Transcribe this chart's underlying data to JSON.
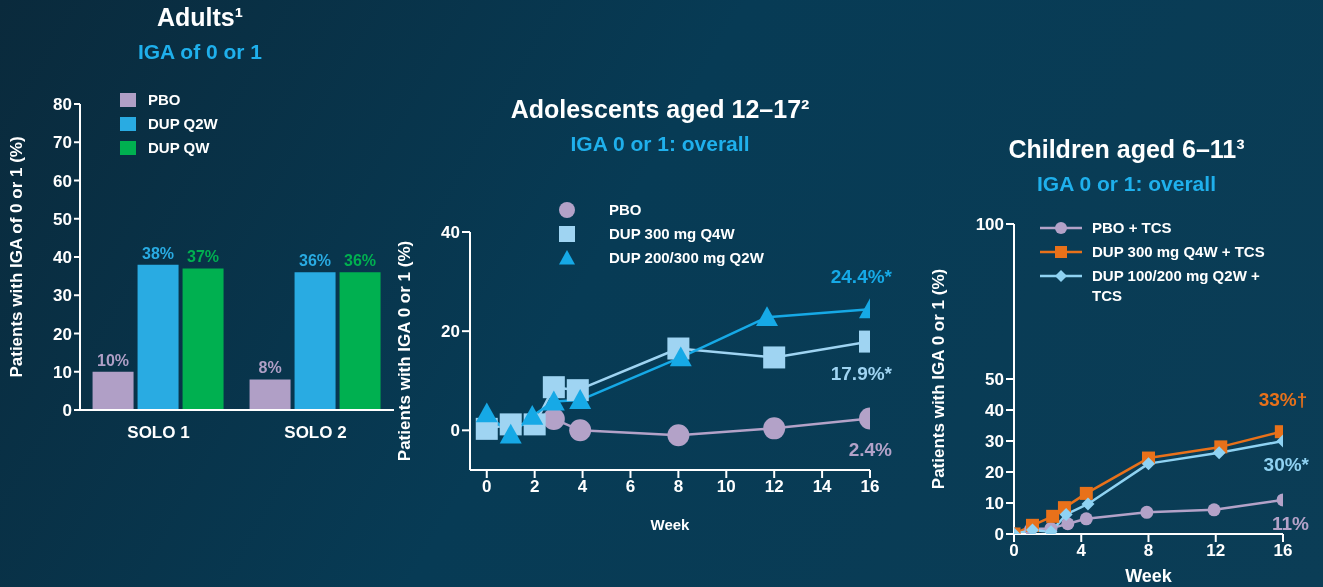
{
  "chart_data": [
    {
      "type": "bar",
      "title": "Adults¹",
      "subtitle": "IGA of 0 or 1",
      "ylabel": "Patients with IGA of 0 or 1 (%)",
      "categories": [
        "SOLO 1",
        "SOLO 2"
      ],
      "ylim": [
        0,
        80
      ],
      "yticks": [
        0,
        10,
        20,
        30,
        40,
        50,
        60,
        70,
        80
      ],
      "grid": false,
      "legend": "top left",
      "series": [
        {
          "name": "PBO",
          "color": "#b09fc6",
          "values": [
            10,
            8
          ],
          "value_labels": [
            "10%",
            "8%"
          ]
        },
        {
          "name": "DUP Q2W",
          "color": "#29abe2",
          "values": [
            38,
            36
          ],
          "value_labels": [
            "38%",
            "36%"
          ]
        },
        {
          "name": "DUP QW",
          "color": "#00b050",
          "values": [
            37,
            36
          ],
          "value_labels": [
            "37%",
            "36%"
          ]
        }
      ]
    },
    {
      "type": "line",
      "title": "Adolescents aged 12–17²",
      "subtitle": "IGA 0 or 1: overall",
      "xlabel": "Week",
      "ylabel": "Patients with IGA 0 or 1 (%)",
      "xlim": [
        -0.7,
        16
      ],
      "xticks": [
        0,
        2,
        4,
        6,
        8,
        10,
        12,
        14,
        16
      ],
      "ylim": [
        -8,
        40
      ],
      "yticks": [
        0,
        20,
        40
      ],
      "grid": false,
      "legend": "top",
      "series": [
        {
          "name": "PBO",
          "color": "#b3a2c8",
          "marker": "circle",
          "x": [
            2.8,
            3.9,
            8,
            12,
            16
          ],
          "values": [
            2.3,
            0,
            -1,
            0.4,
            2.4
          ],
          "value_labels": [
            null,
            null,
            null,
            null,
            "2.4%"
          ]
        },
        {
          "name": "DUP 300 mg Q4W",
          "color": "#9fd4f2",
          "marker": "square",
          "x": [
            0,
            1,
            2,
            2.8,
            3.8,
            8,
            12,
            16
          ],
          "values": [
            0.3,
            1.2,
            1.2,
            8.7,
            8.1,
            16.5,
            14.7,
            17.9
          ],
          "value_labels": [
            null,
            null,
            null,
            null,
            null,
            null,
            null,
            "17.9%*"
          ]
        },
        {
          "name": "DUP 200/300 mg Q2W",
          "color": "#16a9e6",
          "marker": "triangle",
          "x": [
            0,
            1,
            1.9,
            2.8,
            3.9,
            8.1,
            11.7,
            16
          ],
          "values": [
            3.4,
            -0.9,
            2.9,
            5.8,
            6.1,
            14.7,
            22.8,
            24.4
          ],
          "value_labels": [
            null,
            null,
            null,
            null,
            null,
            null,
            null,
            "24.4%*"
          ]
        }
      ]
    },
    {
      "type": "line",
      "title": "Children aged 6–11³",
      "subtitle": "IGA 0 or 1: overall",
      "xlabel": "Week",
      "ylabel": "Patients with IGA 0 or 1 (%)",
      "xlim": [
        0,
        16
      ],
      "xticks": [
        0,
        4,
        8,
        12,
        16
      ],
      "ylim": [
        0,
        100
      ],
      "yticks": [
        0,
        10,
        20,
        30,
        40,
        50,
        100
      ],
      "grid": false,
      "legend": "top left",
      "series": [
        {
          "name": "PBO + TCS",
          "color": "#b3a2c8",
          "marker": "circle",
          "x": [
            0,
            1,
            2.2,
            3.2,
            4.3,
            7.9,
            11.9,
            16
          ],
          "values": [
            0,
            1.6,
            1.8,
            3.3,
            4.9,
            7,
            7.8,
            11
          ],
          "value_labels": [
            null,
            null,
            null,
            null,
            null,
            null,
            null,
            "11%"
          ]
        },
        {
          "name": "DUP 300 mg Q4W + TCS",
          "color": "#e8711a",
          "marker": "square",
          "x": [
            0,
            1.1,
            2.3,
            3,
            4.3,
            8,
            12.3,
            15.9
          ],
          "values": [
            0,
            2.8,
            5.7,
            8.5,
            13.1,
            24.5,
            28.1,
            33
          ],
          "value_labels": [
            null,
            null,
            null,
            null,
            null,
            null,
            null,
            "33%†"
          ]
        },
        {
          "name": "DUP 100/200 mg Q2W + TCS",
          "color": "#8fd2f2",
          "marker": "diamond",
          "x": [
            0,
            1.1,
            2.2,
            3.1,
            4.4,
            8,
            12.2,
            16
          ],
          "values": [
            0,
            1.3,
            0.7,
            6.3,
            9.7,
            22.7,
            26.2,
            30
          ],
          "value_labels": [
            null,
            null,
            null,
            null,
            null,
            null,
            null,
            "30%*"
          ]
        }
      ]
    }
  ]
}
